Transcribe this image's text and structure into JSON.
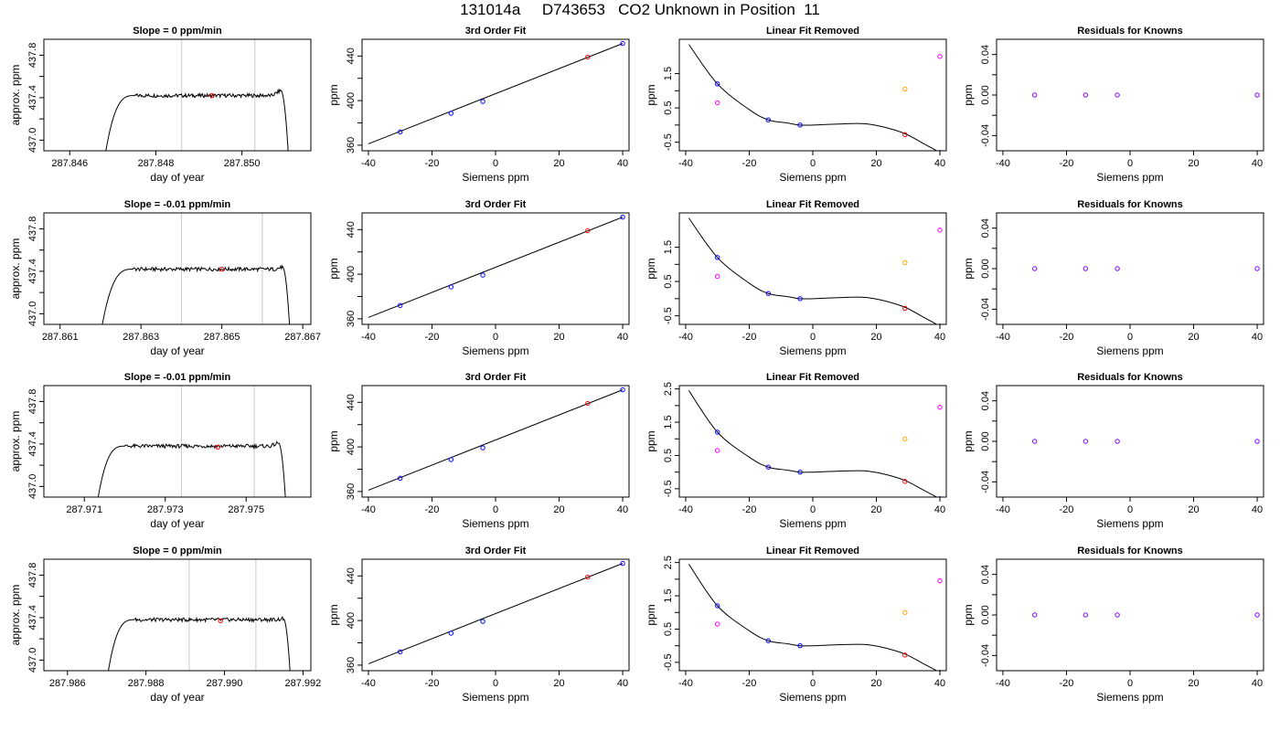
{
  "figure": {
    "title": "131014a     D743653   CO2 Unknown in Position  11"
  },
  "colors": {
    "axis": "#000000",
    "curve": "#000000",
    "vline": "#c8c8c8",
    "known_point": "#0000ff",
    "unknown_point": "#ff0000",
    "raw_offset": "#ff00ff",
    "unknown_offset": "#ffa500",
    "residual_point": "#8000ff"
  },
  "chart_data": [
    {
      "row": 1,
      "panels": [
        {
          "type": "line",
          "title": "Slope =  0  ppm/min",
          "xlabel": "day of year",
          "ylabel": "approx. ppm",
          "xlim": [
            287.8454,
            287.8516
          ],
          "ylim": [
            436.9,
            437.95
          ],
          "xticks": [
            "287.846",
            "287.848",
            "287.850"
          ],
          "yticks": [
            "437.0",
            "437.4",
            "437.8"
          ],
          "vlines": [
            287.8486,
            287.8503
          ],
          "signal": {
            "start": 287.8468,
            "rise_end": 287.8475,
            "level": 437.42,
            "fall_start": 287.8509,
            "end": 287.8511,
            "bump": 437.47
          },
          "marker": {
            "x": 287.8493,
            "y": 437.42
          }
        },
        {
          "type": "scatter",
          "title": "3rd Order Fit",
          "xlabel": "Siemens ppm",
          "ylabel": "ppm",
          "xlim": [
            -42,
            42
          ],
          "ylim": [
            355,
            455
          ],
          "xticks": [
            "-40",
            "-20",
            "0",
            "20",
            "40"
          ],
          "yticks": [
            "360",
            "400",
            "440"
          ],
          "line": {
            "x": [
              -40,
              40
            ],
            "y": [
              361.2,
              451.2
            ]
          },
          "knowns": {
            "x": [
              -30,
              -14,
              -4,
              40
            ],
            "y": [
              371.9,
              388.6,
              399.2,
              451.2
            ]
          },
          "unknown": {
            "x": 29,
            "y": 439.0
          }
        },
        {
          "type": "scatter",
          "title": "Linear Fit Removed",
          "xlabel": "Siemens ppm",
          "ylabel": "ppm",
          "xlim": [
            -42,
            42
          ],
          "ylim": [
            -0.75,
            2.5
          ],
          "xticks": [
            "-40",
            "-20",
            "0",
            "20",
            "40"
          ],
          "yticks": [
            "-0.5",
            "0.5",
            "1.5"
          ],
          "curve": {
            "x": [
              -39,
              -30,
              -20,
              -14,
              -8,
              -4,
              0,
              8,
              16,
              22,
              29,
              35,
              40
            ],
            "y": [
              2.35,
              1.2,
              0.45,
              0.15,
              0.06,
              0.0,
              0.0,
              0.03,
              0.04,
              -0.05,
              -0.25,
              -0.55,
              -0.8
            ]
          },
          "knowns": {
            "x": [
              -30,
              -14,
              -4,
              40
            ],
            "y": [
              1.2,
              0.15,
              0.0,
              -0.8
            ]
          },
          "unknown": {
            "x": 29,
            "y": -0.28
          },
          "raw_offsets": {
            "x": [
              -30,
              40
            ],
            "y": [
              0.65,
              2.0
            ]
          },
          "unknown_offset": {
            "x": 29,
            "y": 1.05
          }
        },
        {
          "type": "scatter",
          "title": "Residuals for Knowns",
          "xlabel": "Siemens ppm",
          "ylabel": "ppm",
          "xlim": [
            -42,
            42
          ],
          "ylim": [
            -0.055,
            0.055
          ],
          "xticks": [
            "-40",
            "-20",
            "0",
            "20",
            "40"
          ],
          "yticks": [
            "-0.04",
            "0.00",
            "0.04"
          ],
          "residuals": {
            "x": [
              -30,
              -14,
              -4,
              40
            ],
            "y": [
              0.0,
              0.0,
              0.0,
              0.0
            ]
          }
        }
      ]
    },
    {
      "row": 2,
      "panels": [
        {
          "type": "line",
          "title": "Slope =  -0.01  ppm/min",
          "xlabel": "day of year",
          "ylabel": "approx. ppm",
          "xlim": [
            287.8606,
            287.8672
          ],
          "ylim": [
            436.9,
            437.95
          ],
          "xticks": [
            "287.861",
            "287.863",
            "287.865",
            "287.867"
          ],
          "yticks": [
            "437.0",
            "437.4",
            "437.8"
          ],
          "vlines": [
            287.864,
            287.866
          ],
          "signal": {
            "start": 287.862,
            "rise_end": 287.8628,
            "level": 437.42,
            "fall_start": 287.8665,
            "end": 287.8667,
            "bump": 437.44
          },
          "marker": {
            "x": 287.865,
            "y": 437.42
          }
        },
        {
          "type": "scatter",
          "title": "3rd Order Fit",
          "xlabel": "Siemens ppm",
          "ylabel": "ppm",
          "xlim": [
            -42,
            42
          ],
          "ylim": [
            355,
            455
          ],
          "xticks": [
            "-40",
            "-20",
            "0",
            "20",
            "40"
          ],
          "yticks": [
            "360",
            "400",
            "440"
          ],
          "line": {
            "x": [
              -40,
              40
            ],
            "y": [
              361.2,
              451.2
            ]
          },
          "knowns": {
            "x": [
              -30,
              -14,
              -4,
              40
            ],
            "y": [
              371.9,
              388.6,
              399.2,
              451.2
            ]
          },
          "unknown": {
            "x": 29,
            "y": 439.0
          }
        },
        {
          "type": "scatter",
          "title": "Linear Fit Removed",
          "xlabel": "Siemens ppm",
          "ylabel": "ppm",
          "xlim": [
            -42,
            42
          ],
          "ylim": [
            -0.75,
            2.5
          ],
          "xticks": [
            "-40",
            "-20",
            "0",
            "20",
            "40"
          ],
          "yticks": [
            "-0.5",
            "0.5",
            "1.5"
          ],
          "curve": {
            "x": [
              -39,
              -30,
              -20,
              -14,
              -8,
              -4,
              0,
              8,
              16,
              22,
              29,
              35,
              40
            ],
            "y": [
              2.35,
              1.2,
              0.45,
              0.15,
              0.06,
              0.0,
              0.0,
              0.03,
              0.04,
              -0.05,
              -0.25,
              -0.55,
              -0.8
            ]
          },
          "knowns": {
            "x": [
              -30,
              -14,
              -4,
              40
            ],
            "y": [
              1.2,
              0.15,
              0.0,
              -0.8
            ]
          },
          "unknown": {
            "x": 29,
            "y": -0.28
          },
          "raw_offsets": {
            "x": [
              -30,
              40
            ],
            "y": [
              0.65,
              2.0
            ]
          },
          "unknown_offset": {
            "x": 29,
            "y": 1.05
          }
        },
        {
          "type": "scatter",
          "title": "Residuals for Knowns",
          "xlabel": "Siemens ppm",
          "ylabel": "ppm",
          "xlim": [
            -42,
            42
          ],
          "ylim": [
            -0.055,
            0.055
          ],
          "xticks": [
            "-40",
            "-20",
            "0",
            "20",
            "40"
          ],
          "yticks": [
            "-0.04",
            "0.00",
            "0.04"
          ],
          "residuals": {
            "x": [
              -30,
              -14,
              -4,
              40
            ],
            "y": [
              0.0,
              0.0,
              0.0,
              0.0
            ]
          }
        }
      ]
    },
    {
      "row": 3,
      "panels": [
        {
          "type": "line",
          "title": "Slope =  -0.01  ppm/min",
          "xlabel": "day of year",
          "ylabel": "approx. ppm",
          "xlim": [
            287.97,
            287.9766
          ],
          "ylim": [
            436.9,
            437.95
          ],
          "xticks": [
            "287.971",
            "287.973",
            "287.975"
          ],
          "yticks": [
            "437.0",
            "437.4",
            "437.8"
          ],
          "vlines": [
            287.9734,
            287.9752
          ],
          "signal": {
            "start": 287.9713,
            "rise_end": 287.972,
            "level": 437.38,
            "fall_start": 287.9758,
            "end": 287.976,
            "bump": 437.41
          },
          "marker": {
            "x": 287.9743,
            "y": 437.37
          }
        },
        {
          "type": "scatter",
          "title": "3rd Order Fit",
          "xlabel": "Siemens ppm",
          "ylabel": "ppm",
          "xlim": [
            -42,
            42
          ],
          "ylim": [
            355,
            455
          ],
          "xticks": [
            "-40",
            "-20",
            "0",
            "20",
            "40"
          ],
          "yticks": [
            "360",
            "400",
            "440"
          ],
          "line": {
            "x": [
              -40,
              40
            ],
            "y": [
              361.2,
              451.2
            ]
          },
          "knowns": {
            "x": [
              -30,
              -14,
              -4,
              40
            ],
            "y": [
              371.9,
              388.6,
              399.2,
              451.2
            ]
          },
          "unknown": {
            "x": 29,
            "y": 439.0
          }
        },
        {
          "type": "scatter",
          "title": "Linear Fit Removed",
          "xlabel": "Siemens ppm",
          "ylabel": "ppm",
          "xlim": [
            -42,
            42
          ],
          "ylim": [
            -0.75,
            2.6
          ],
          "xticks": [
            "-40",
            "-20",
            "0",
            "20",
            "40"
          ],
          "yticks": [
            "-0.5",
            "0.5",
            "1.5",
            "2.5"
          ],
          "curve": {
            "x": [
              -39,
              -30,
              -20,
              -14,
              -8,
              -4,
              0,
              8,
              16,
              22,
              29,
              35,
              40
            ],
            "y": [
              2.45,
              1.2,
              0.45,
              0.15,
              0.06,
              0.0,
              0.0,
              0.03,
              0.04,
              -0.05,
              -0.25,
              -0.55,
              -0.8
            ]
          },
          "knowns": {
            "x": [
              -30,
              -14,
              -4,
              40
            ],
            "y": [
              1.2,
              0.15,
              0.0,
              -0.8
            ]
          },
          "unknown": {
            "x": 29,
            "y": -0.28
          },
          "raw_offsets": {
            "x": [
              -30,
              40
            ],
            "y": [
              0.65,
              1.95
            ]
          },
          "unknown_offset": {
            "x": 29,
            "y": 1.0
          }
        },
        {
          "type": "scatter",
          "title": "Residuals for Knowns",
          "xlabel": "Siemens ppm",
          "ylabel": "ppm",
          "xlim": [
            -42,
            42
          ],
          "ylim": [
            -0.055,
            0.055
          ],
          "xticks": [
            "-40",
            "-20",
            "0",
            "20",
            "40"
          ],
          "yticks": [
            "-0.04",
            "0.00",
            "0.04"
          ],
          "residuals": {
            "x": [
              -30,
              -14,
              -4,
              40
            ],
            "y": [
              0.0,
              0.0,
              0.0,
              0.0
            ]
          }
        }
      ]
    },
    {
      "row": 4,
      "panels": [
        {
          "type": "line",
          "title": "Slope =  0  ppm/min",
          "xlabel": "day of year",
          "ylabel": "approx. ppm",
          "xlim": [
            287.9854,
            287.9922
          ],
          "ylim": [
            436.9,
            437.95
          ],
          "xticks": [
            "287.986",
            "287.988",
            "287.990",
            "287.992"
          ],
          "yticks": [
            "437.0",
            "437.4",
            "437.8"
          ],
          "vlines": [
            287.9891,
            287.9908
          ],
          "signal": {
            "start": 287.987,
            "rise_end": 287.9877,
            "level": 437.38,
            "fall_start": 287.9915,
            "end": 287.9917,
            "bump": 437.39
          },
          "marker": {
            "x": 287.9899,
            "y": 437.37
          }
        },
        {
          "type": "scatter",
          "title": "3rd Order Fit",
          "xlabel": "Siemens ppm",
          "ylabel": "ppm",
          "xlim": [
            -42,
            42
          ],
          "ylim": [
            355,
            455
          ],
          "xticks": [
            "-40",
            "-20",
            "0",
            "20",
            "40"
          ],
          "yticks": [
            "360",
            "400",
            "440"
          ],
          "line": {
            "x": [
              -40,
              40
            ],
            "y": [
              361.2,
              451.2
            ]
          },
          "knowns": {
            "x": [
              -30,
              -14,
              -4,
              40
            ],
            "y": [
              371.9,
              388.6,
              399.2,
              451.2
            ]
          },
          "unknown": {
            "x": 29,
            "y": 439.0
          }
        },
        {
          "type": "scatter",
          "title": "Linear Fit Removed",
          "xlabel": "Siemens ppm",
          "ylabel": "ppm",
          "xlim": [
            -42,
            42
          ],
          "ylim": [
            -0.75,
            2.6
          ],
          "xticks": [
            "-40",
            "-20",
            "0",
            "20",
            "40"
          ],
          "yticks": [
            "-0.5",
            "0.5",
            "1.5",
            "2.5"
          ],
          "curve": {
            "x": [
              -39,
              -30,
              -20,
              -14,
              -8,
              -4,
              0,
              8,
              16,
              22,
              29,
              35,
              40
            ],
            "y": [
              2.45,
              1.2,
              0.45,
              0.15,
              0.06,
              0.0,
              0.0,
              0.03,
              0.04,
              -0.05,
              -0.25,
              -0.55,
              -0.8
            ]
          },
          "knowns": {
            "x": [
              -30,
              -14,
              -4,
              40
            ],
            "y": [
              1.2,
              0.15,
              0.0,
              -0.8
            ]
          },
          "unknown": {
            "x": 29,
            "y": -0.28
          },
          "raw_offsets": {
            "x": [
              -30,
              40
            ],
            "y": [
              0.65,
              1.95
            ]
          },
          "unknown_offset": {
            "x": 29,
            "y": 1.0
          }
        },
        {
          "type": "scatter",
          "title": "Residuals for Knowns",
          "xlabel": "Siemens ppm",
          "ylabel": "ppm",
          "xlim": [
            -42,
            42
          ],
          "ylim": [
            -0.055,
            0.055
          ],
          "xticks": [
            "-40",
            "-20",
            "0",
            "20",
            "40"
          ],
          "yticks": [
            "-0.04",
            "0.00",
            "0.04"
          ],
          "residuals": {
            "x": [
              -30,
              -14,
              -4,
              40
            ],
            "y": [
              0.0,
              0.0,
              0.0,
              0.0
            ]
          }
        }
      ]
    }
  ]
}
